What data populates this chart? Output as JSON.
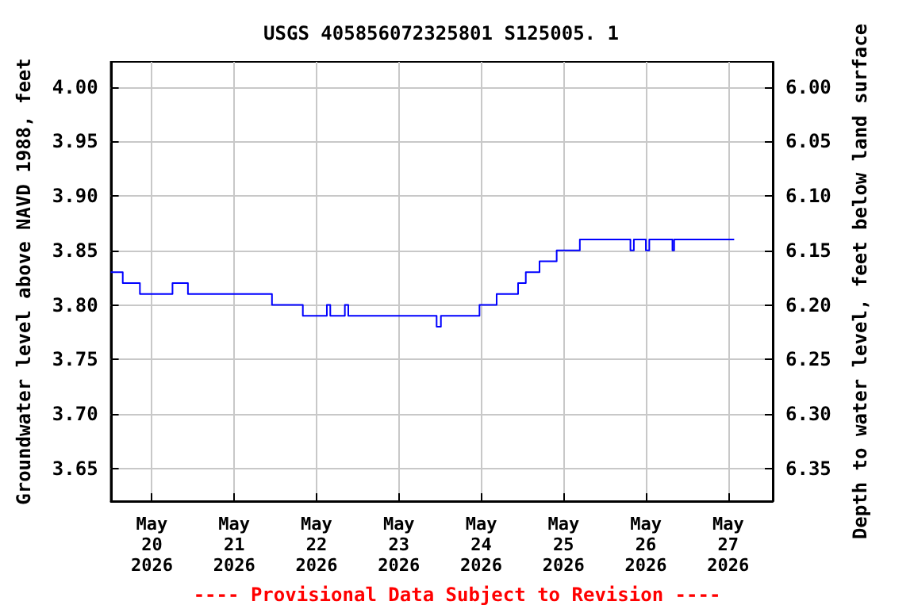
{
  "chart_data": {
    "type": "step",
    "title": "USGS 405856072325801 S125005. 1",
    "ylabel": "Groundwater level above NAVD 1988, feet",
    "y2label": "Depth to water level, feet below land surface",
    "annotations": [
      "---- Provisional Data Subject to Revision ----"
    ],
    "x": [
      "2026-05-19T12:00",
      "2026-05-19T15:30",
      "2026-05-19T20:30",
      "2026-05-20T06:00",
      "2026-05-20T10:30",
      "2026-05-21T11:00",
      "2026-05-21T20:00",
      "2026-05-22T03:00",
      "2026-05-22T04:00",
      "2026-05-22T08:15",
      "2026-05-22T09:15",
      "2026-05-23T11:00",
      "2026-05-23T12:15",
      "2026-05-23T23:30",
      "2026-05-24T04:30",
      "2026-05-24T10:45",
      "2026-05-24T13:00",
      "2026-05-24T17:00",
      "2026-05-24T22:00",
      "2026-05-25T04:45",
      "2026-05-25T19:30",
      "2026-05-25T20:30",
      "2026-05-26T00:00",
      "2026-05-26T01:00",
      "2026-05-26T07:45",
      "2026-05-26T08:15",
      "2026-05-27T01:45"
    ],
    "series": [
      {
        "color": "#0000ff",
        "values": [
          3.83,
          3.82,
          3.81,
          3.82,
          3.81,
          3.8,
          3.79,
          3.8,
          3.79,
          3.8,
          3.79,
          3.78,
          3.79,
          3.8,
          3.81,
          3.82,
          3.83,
          3.84,
          3.85,
          3.86,
          3.85,
          3.86,
          3.85,
          3.86,
          3.85,
          3.86,
          3.86
        ]
      }
    ],
    "xlim": [
      "2026-05-19T12:00",
      "2026-05-27T13:00"
    ],
    "xticks": [
      {
        "value": "2026-05-20",
        "label": "May\n20\n2026"
      },
      {
        "value": "2026-05-21",
        "label": "May\n21\n2026"
      },
      {
        "value": "2026-05-22",
        "label": "May\n22\n2026"
      },
      {
        "value": "2026-05-23",
        "label": "May\n23\n2026"
      },
      {
        "value": "2026-05-24",
        "label": "May\n24\n2026"
      },
      {
        "value": "2026-05-25",
        "label": "May\n25\n2026"
      },
      {
        "value": "2026-05-26",
        "label": "May\n26\n2026"
      },
      {
        "value": "2026-05-27",
        "label": "May\n27\n2026"
      }
    ],
    "ylim": [
      3.62,
      4.023
    ],
    "yticks": [
      {
        "value": 3.65,
        "label": "3.65"
      },
      {
        "value": 3.7,
        "label": "3.70"
      },
      {
        "value": 3.75,
        "label": "3.75"
      },
      {
        "value": 3.8,
        "label": "3.80"
      },
      {
        "value": 3.85,
        "label": "3.85"
      },
      {
        "value": 3.9,
        "label": "3.90"
      },
      {
        "value": 3.95,
        "label": "3.95"
      },
      {
        "value": 4.0,
        "label": "4.00"
      }
    ],
    "y2lim": [
      6.38,
      5.977
    ],
    "y2ticks": [
      {
        "value": 6.0,
        "label": "6.00"
      },
      {
        "value": 6.05,
        "label": "6.05"
      },
      {
        "value": 6.1,
        "label": "6.10"
      },
      {
        "value": 6.15,
        "label": "6.15"
      },
      {
        "value": 6.2,
        "label": "6.20"
      },
      {
        "value": 6.25,
        "label": "6.25"
      },
      {
        "value": 6.3,
        "label": "6.30"
      },
      {
        "value": 6.35,
        "label": "6.35"
      }
    ],
    "grid": true
  }
}
